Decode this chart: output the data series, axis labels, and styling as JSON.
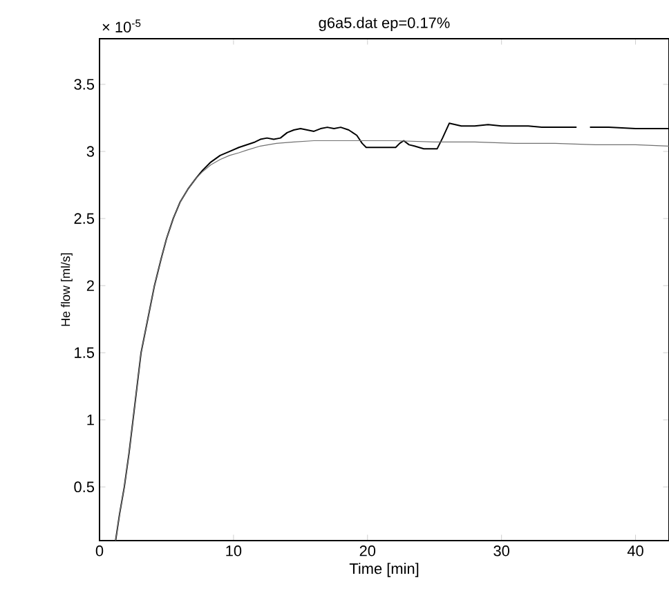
{
  "chart_data": {
    "type": "line",
    "title": "g6a5.dat ep=0.17%",
    "xlabel": "Time [min]",
    "ylabel": "He flow [ml/s]",
    "annotations": [
      "× 10$^{-5}$"
    ],
    "xlim": [
      0,
      42.5
    ],
    "ylim": [
      0.1,
      3.84
    ],
    "xticks": [
      0,
      10,
      20,
      30,
      40
    ],
    "yticks": [
      0.5,
      1,
      1.5,
      2,
      2.5,
      3,
      3.5
    ],
    "grid": false,
    "series": [
      {
        "color": "#000000",
        "x": [
          1.2,
          1.5,
          1.85,
          2.2,
          2.5,
          2.8,
          3.1,
          3.6,
          4.1,
          4.6,
          5.0,
          5.5,
          6.0,
          6.6,
          7.2,
          7.7,
          8.3,
          9.0,
          9.7,
          10.4,
          11.0,
          11.6,
          12.0,
          12.5,
          13.0,
          13.5,
          14.0,
          14.5,
          15.0,
          15.5,
          16.0,
          16.5,
          17.0,
          17.5,
          18.0,
          18.6,
          19.2,
          19.6,
          19.9,
          20.5,
          21.2,
          22.1,
          22.4,
          22.7,
          23.1,
          23.5,
          24.2,
          25.2,
          25.6,
          26.1,
          27.0,
          28.0,
          29.0,
          30.0,
          31.0,
          32.0,
          33.0,
          34.0,
          35.0,
          35.6,
          36.1,
          36.6,
          38.0,
          40.0,
          42.5
        ],
        "values": [
          0.1,
          0.3,
          0.5,
          0.75,
          1.0,
          1.25,
          1.5,
          1.75,
          2.0,
          2.2,
          2.35,
          2.5,
          2.62,
          2.72,
          2.8,
          2.86,
          2.92,
          2.97,
          3.0,
          3.03,
          3.05,
          3.07,
          3.09,
          3.1,
          3.09,
          3.1,
          3.14,
          3.16,
          3.17,
          3.16,
          3.15,
          3.17,
          3.18,
          3.17,
          3.18,
          3.16,
          3.12,
          3.06,
          3.03,
          3.03,
          3.03,
          3.03,
          3.06,
          3.08,
          3.05,
          3.04,
          3.02,
          3.02,
          3.1,
          3.21,
          3.19,
          3.19,
          3.2,
          3.19,
          3.19,
          3.19,
          3.18,
          3.18,
          3.18,
          3.18,
          null,
          3.18,
          3.18,
          3.17,
          3.17
        ]
      },
      {
        "color": "#707070",
        "x": [
          1.2,
          1.5,
          1.85,
          2.2,
          2.5,
          2.8,
          3.1,
          3.6,
          4.1,
          4.6,
          5.0,
          5.5,
          6.0,
          6.6,
          7.2,
          7.7,
          8.3,
          9.0,
          9.7,
          10.4,
          11.0,
          12.0,
          13.2,
          14.5,
          16.0,
          18.0,
          20.0,
          22.0,
          25.0,
          28.0,
          31.0,
          34.0,
          37.0,
          40.0,
          42.5
        ],
        "values": [
          0.1,
          0.3,
          0.5,
          0.75,
          1.0,
          1.25,
          1.5,
          1.75,
          2.0,
          2.2,
          2.35,
          2.5,
          2.62,
          2.72,
          2.8,
          2.85,
          2.9,
          2.94,
          2.97,
          2.99,
          3.01,
          3.04,
          3.06,
          3.07,
          3.08,
          3.08,
          3.08,
          3.08,
          3.07,
          3.07,
          3.06,
          3.06,
          3.05,
          3.05,
          3.04
        ]
      }
    ]
  }
}
